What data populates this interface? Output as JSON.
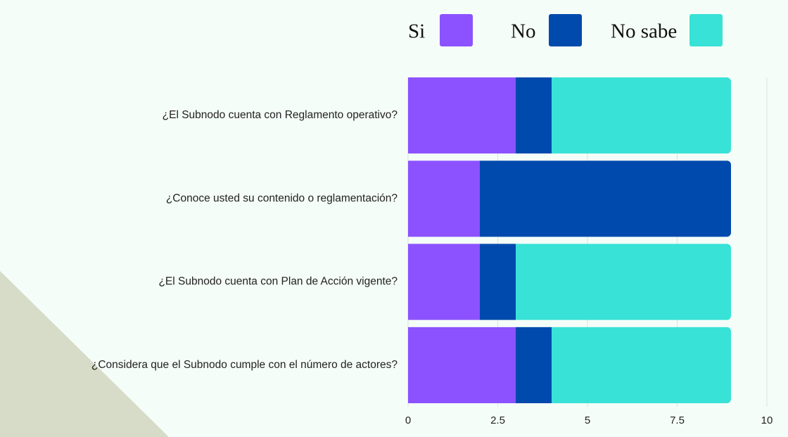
{
  "chart_data": {
    "type": "stacked_barh",
    "categories": [
      "¿El Subnodo cuenta con Reglamento operativo?",
      "¿Conoce usted su contenido o reglamentación?",
      "¿El Subnodo cuenta con Plan de Acción vigente?",
      "¿Considera que el Subnodo cumple con el número de actores?"
    ],
    "series": [
      {
        "name": "Si",
        "color": "#8c52ff",
        "values": [
          3,
          2,
          2,
          3
        ]
      },
      {
        "name": "No",
        "color": "#004aad",
        "values": [
          1,
          7,
          1,
          1
        ]
      },
      {
        "name": "No sabe",
        "color": "#38e2d7",
        "values": [
          5,
          0,
          6,
          5
        ]
      }
    ],
    "xlim": [
      0,
      10
    ],
    "xticks": [
      0,
      2.5,
      5,
      7.5,
      10
    ],
    "grid": true,
    "legend": "top"
  }
}
